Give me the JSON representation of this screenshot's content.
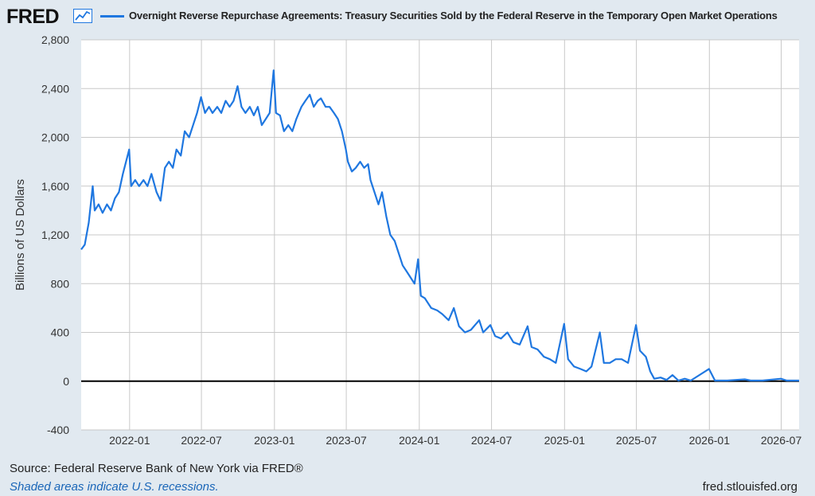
{
  "header": {
    "logo": "FRED",
    "title": "Overnight Reverse Repurchase Agreements: Treasury Securities Sold by the Federal Reserve in the Temporary Open Market Operations"
  },
  "footer": {
    "source": "Source: Federal Reserve Bank of New York via FRED®",
    "recessions": "Shaded areas indicate U.S. recessions.",
    "site": "fred.stlouisfed.org"
  },
  "colors": {
    "series": "#1f77e0",
    "background": "#e1e9f0",
    "plot": "#ffffff",
    "grid": "#c8c8c8"
  },
  "chart_data": {
    "type": "line",
    "title": "Overnight Reverse Repurchase Agreements: Treasury Securities Sold by the Federal Reserve in the Temporary Open Market Operations",
    "ylabel": "Billions of US Dollars",
    "xlabel": "",
    "ylim": [
      -400,
      2800
    ],
    "yticks": [
      -400,
      0,
      400,
      800,
      1200,
      1600,
      2000,
      2400,
      2800
    ],
    "ytick_labels": [
      "-400",
      "0",
      "400",
      "800",
      "1,200",
      "1,600",
      "2,000",
      "2,400",
      "2,800"
    ],
    "xlim": [
      "2021-09-01",
      "2026-08-15"
    ],
    "xticks": [
      "2022-01",
      "2022-07",
      "2023-01",
      "2023-07",
      "2024-01",
      "2024-07",
      "2025-01",
      "2025-07",
      "2026-01",
      "2026-07"
    ],
    "grid": true,
    "series": [
      {
        "name": "",
        "points": [
          [
            "2021-09-01",
            1080
          ],
          [
            "2021-09-10",
            1120
          ],
          [
            "2021-09-20",
            1300
          ],
          [
            "2021-09-30",
            1600
          ],
          [
            "2021-10-05",
            1400
          ],
          [
            "2021-10-15",
            1450
          ],
          [
            "2021-10-25",
            1380
          ],
          [
            "2021-11-05",
            1450
          ],
          [
            "2021-11-15",
            1400
          ],
          [
            "2021-11-25",
            1500
          ],
          [
            "2021-12-05",
            1550
          ],
          [
            "2021-12-15",
            1700
          ],
          [
            "2021-12-31",
            1900
          ],
          [
            "2022-01-05",
            1600
          ],
          [
            "2022-01-15",
            1650
          ],
          [
            "2022-01-25",
            1600
          ],
          [
            "2022-02-05",
            1650
          ],
          [
            "2022-02-15",
            1600
          ],
          [
            "2022-02-25",
            1700
          ],
          [
            "2022-03-10",
            1550
          ],
          [
            "2022-03-20",
            1480
          ],
          [
            "2022-03-31",
            1750
          ],
          [
            "2022-04-10",
            1800
          ],
          [
            "2022-04-20",
            1750
          ],
          [
            "2022-04-29",
            1900
          ],
          [
            "2022-05-10",
            1850
          ],
          [
            "2022-05-20",
            2050
          ],
          [
            "2022-05-31",
            2000
          ],
          [
            "2022-06-10",
            2100
          ],
          [
            "2022-06-20",
            2200
          ],
          [
            "2022-06-30",
            2330
          ],
          [
            "2022-07-10",
            2200
          ],
          [
            "2022-07-20",
            2250
          ],
          [
            "2022-07-29",
            2200
          ],
          [
            "2022-08-10",
            2250
          ],
          [
            "2022-08-20",
            2200
          ],
          [
            "2022-08-31",
            2300
          ],
          [
            "2022-09-10",
            2250
          ],
          [
            "2022-09-20",
            2300
          ],
          [
            "2022-09-30",
            2420
          ],
          [
            "2022-10-10",
            2250
          ],
          [
            "2022-10-20",
            2200
          ],
          [
            "2022-10-31",
            2250
          ],
          [
            "2022-11-10",
            2180
          ],
          [
            "2022-11-20",
            2250
          ],
          [
            "2022-11-30",
            2100
          ],
          [
            "2022-12-10",
            2150
          ],
          [
            "2022-12-20",
            2200
          ],
          [
            "2022-12-30",
            2550
          ],
          [
            "2023-01-05",
            2200
          ],
          [
            "2023-01-15",
            2180
          ],
          [
            "2023-01-25",
            2050
          ],
          [
            "2023-02-05",
            2100
          ],
          [
            "2023-02-15",
            2050
          ],
          [
            "2023-02-25",
            2150
          ],
          [
            "2023-03-10",
            2250
          ],
          [
            "2023-03-20",
            2300
          ],
          [
            "2023-03-31",
            2350
          ],
          [
            "2023-04-10",
            2250
          ],
          [
            "2023-04-20",
            2300
          ],
          [
            "2023-04-28",
            2320
          ],
          [
            "2023-05-10",
            2250
          ],
          [
            "2023-05-20",
            2250
          ],
          [
            "2023-05-31",
            2200
          ],
          [
            "2023-06-10",
            2150
          ],
          [
            "2023-06-20",
            2050
          ],
          [
            "2023-06-30",
            1900
          ],
          [
            "2023-07-05",
            1800
          ],
          [
            "2023-07-15",
            1720
          ],
          [
            "2023-07-25",
            1750
          ],
          [
            "2023-08-05",
            1800
          ],
          [
            "2023-08-15",
            1750
          ],
          [
            "2023-08-25",
            1780
          ],
          [
            "2023-08-31",
            1650
          ],
          [
            "2023-09-10",
            1550
          ],
          [
            "2023-09-20",
            1450
          ],
          [
            "2023-09-29",
            1550
          ],
          [
            "2023-10-10",
            1350
          ],
          [
            "2023-10-20",
            1200
          ],
          [
            "2023-10-31",
            1150
          ],
          [
            "2023-11-10",
            1050
          ],
          [
            "2023-11-20",
            950
          ],
          [
            "2023-11-30",
            900
          ],
          [
            "2023-12-10",
            850
          ],
          [
            "2023-12-20",
            800
          ],
          [
            "2023-12-29",
            1000
          ],
          [
            "2024-01-05",
            700
          ],
          [
            "2024-01-15",
            680
          ],
          [
            "2024-01-31",
            600
          ],
          [
            "2024-02-15",
            580
          ],
          [
            "2024-02-28",
            550
          ],
          [
            "2024-03-15",
            500
          ],
          [
            "2024-03-28",
            600
          ],
          [
            "2024-04-10",
            450
          ],
          [
            "2024-04-25",
            400
          ],
          [
            "2024-05-10",
            420
          ],
          [
            "2024-05-31",
            500
          ],
          [
            "2024-06-10",
            400
          ],
          [
            "2024-06-28",
            460
          ],
          [
            "2024-07-10",
            370
          ],
          [
            "2024-07-25",
            350
          ],
          [
            "2024-08-10",
            400
          ],
          [
            "2024-08-25",
            320
          ],
          [
            "2024-09-10",
            300
          ],
          [
            "2024-09-30",
            450
          ],
          [
            "2024-10-10",
            280
          ],
          [
            "2024-10-25",
            260
          ],
          [
            "2024-11-10",
            200
          ],
          [
            "2024-11-25",
            180
          ],
          [
            "2024-12-10",
            150
          ],
          [
            "2024-12-31",
            470
          ],
          [
            "2025-01-10",
            180
          ],
          [
            "2025-01-25",
            120
          ],
          [
            "2025-02-10",
            100
          ],
          [
            "2025-02-25",
            80
          ],
          [
            "2025-03-10",
            120
          ],
          [
            "2025-03-31",
            400
          ],
          [
            "2025-04-10",
            150
          ],
          [
            "2025-04-25",
            150
          ],
          [
            "2025-05-10",
            180
          ],
          [
            "2025-05-25",
            180
          ],
          [
            "2025-06-10",
            150
          ],
          [
            "2025-06-30",
            460
          ],
          [
            "2025-07-10",
            250
          ],
          [
            "2025-07-25",
            200
          ],
          [
            "2025-08-05",
            80
          ],
          [
            "2025-08-15",
            20
          ],
          [
            "2025-08-31",
            30
          ],
          [
            "2025-09-15",
            10
          ],
          [
            "2025-09-30",
            50
          ],
          [
            "2025-10-15",
            5
          ],
          [
            "2025-10-31",
            20
          ],
          [
            "2025-11-15",
            5
          ],
          [
            "2025-12-31",
            100
          ],
          [
            "2026-01-15",
            5
          ],
          [
            "2026-02-15",
            5
          ],
          [
            "2026-03-31",
            15
          ],
          [
            "2026-04-15",
            5
          ],
          [
            "2026-05-15",
            5
          ],
          [
            "2026-06-30",
            20
          ],
          [
            "2026-07-15",
            5
          ],
          [
            "2026-08-15",
            5
          ]
        ]
      }
    ]
  }
}
